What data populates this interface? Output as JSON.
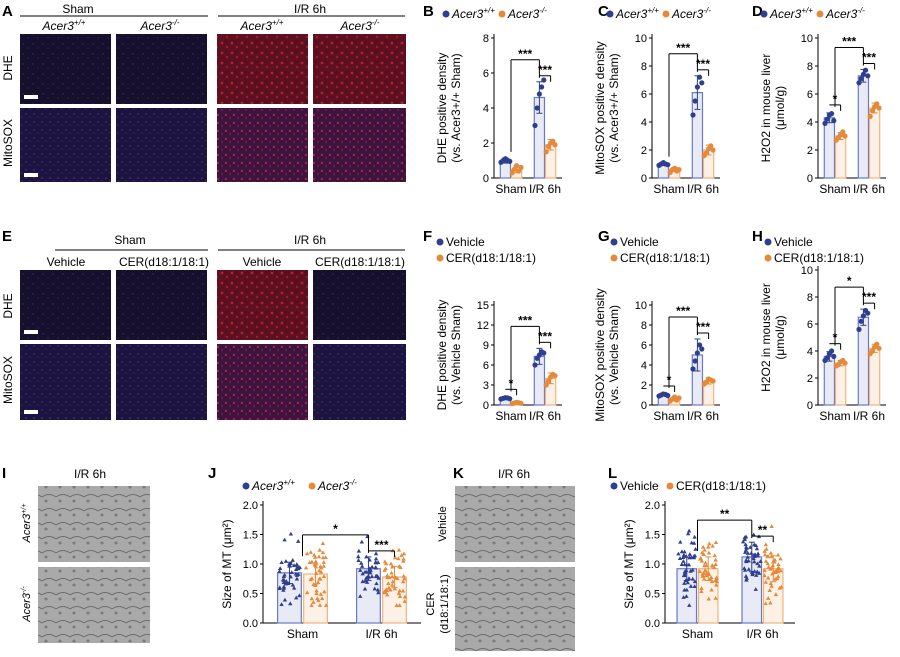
{
  "figure": {
    "panel_letters": [
      "A",
      "B",
      "C",
      "D",
      "E",
      "F",
      "G",
      "H",
      "I",
      "J",
      "K",
      "L"
    ],
    "scale_bar": "",
    "colors": {
      "wt_dark": "#2f3f8f",
      "wt_light": "#6a79c7",
      "ko_orange": "#e58a3a",
      "ko_light": "#f2b47c",
      "stain_red": "#8c1a2a",
      "stain_blue": "#1c1f5a",
      "em_gray": "#9a9a9a"
    }
  },
  "panel_A": {
    "group_sham": "Sham",
    "group_ir": "I/R 6h",
    "col_wt": "Acer3",
    "col_wt_sup": "+/+",
    "col_ko": "Acer3",
    "col_ko_sup": "-/-",
    "row_dhe": "DHE",
    "row_mitosox": "MitoSOX"
  },
  "panel_E": {
    "group_sham": "Sham",
    "group_ir": "I/R 6h",
    "col_vehicle": "Vehicle",
    "col_cer": "CER(d18:1/18:1)",
    "row_dhe": "DHE",
    "row_mitosox": "MitoSOX"
  },
  "panel_I": {
    "title": "I/R 6h",
    "row_wt": "Acer3",
    "row_wt_sup": "+/+",
    "row_ko": "Acer3",
    "row_ko_sup": "-/-"
  },
  "panel_K": {
    "title": "I/R 6h",
    "row_vehicle": "Vehicle",
    "row_cer": "CER",
    "row_cer2": "(d18:1/18:1)"
  },
  "chart_data": [
    {
      "panel": "B",
      "type": "bar",
      "categories": [
        "Sham",
        "I/R 6h"
      ],
      "series": [
        {
          "name": "Acer3+/+",
          "values": [
            1.0,
            4.6
          ],
          "error": [
            0.15,
            0.9
          ],
          "points": [
            [
              0.9,
              1.0,
              1.1,
              1.0,
              0.95
            ],
            [
              3.0,
              4.0,
              4.8,
              5.2,
              5.6
            ]
          ]
        },
        {
          "name": "Acer3-/-",
          "values": [
            0.5,
            1.9
          ],
          "error": [
            0.2,
            0.3
          ],
          "points": [
            [
              0.3,
              0.5,
              0.7,
              0.4,
              0.6
            ],
            [
              1.5,
              1.8,
              2.0,
              2.1,
              1.9
            ]
          ]
        }
      ],
      "ylabel_line1": "DHE positive density",
      "ylabel_line2": "(vs. Acer3+/+ Sham)",
      "ylim": [
        0,
        8
      ],
      "yticks": [
        0,
        2,
        4,
        6,
        8
      ],
      "significance": [
        "***",
        "***"
      ]
    },
    {
      "panel": "C",
      "type": "bar",
      "categories": [
        "Sham",
        "I/R 6h"
      ],
      "series": [
        {
          "name": "Acer3+/+",
          "values": [
            1.0,
            6.1
          ],
          "error": [
            0.1,
            1.2
          ],
          "points": [
            [
              0.9,
              1.0,
              1.1,
              1.0,
              0.95
            ],
            [
              4.5,
              5.5,
              6.5,
              7.2,
              6.8
            ]
          ]
        },
        {
          "name": "Acer3-/-",
          "values": [
            0.6,
            2.0
          ],
          "error": [
            0.15,
            0.35
          ],
          "points": [
            [
              0.4,
              0.6,
              0.7,
              0.5,
              0.6
            ],
            [
              1.6,
              1.8,
              2.1,
              2.3,
              2.0
            ]
          ]
        }
      ],
      "ylabel_line1": "MitoSOX positive density",
      "ylabel_line2": "(vs. Acer3+/+ Sham)",
      "ylim": [
        0,
        10
      ],
      "yticks": [
        0,
        2,
        4,
        6,
        8,
        10
      ],
      "significance": [
        "***",
        "***"
      ]
    },
    {
      "panel": "D",
      "type": "bar",
      "categories": [
        "Sham",
        "I/R 6h"
      ],
      "series": [
        {
          "name": "Acer3+/+",
          "values": [
            4.3,
            7.3
          ],
          "error": [
            0.35,
            0.45
          ],
          "points": [
            [
              3.9,
              4.2,
              4.5,
              4.6,
              4.1
            ],
            [
              6.8,
              7.1,
              7.4,
              7.7,
              7.3
            ]
          ]
        },
        {
          "name": "Acer3-/-",
          "values": [
            3.0,
            5.0
          ],
          "error": [
            0.25,
            0.35
          ],
          "points": [
            [
              2.7,
              2.9,
              3.1,
              3.3,
              3.0
            ],
            [
              4.4,
              4.8,
              5.1,
              5.3,
              5.0
            ]
          ]
        }
      ],
      "ylabel_line1": "H2O2 in mouse liver",
      "ylabel_line2": "(μmol/g)",
      "ylim": [
        0,
        10
      ],
      "yticks": [
        0,
        2,
        4,
        6,
        8,
        10
      ],
      "significance": [
        "*",
        "***",
        "***"
      ]
    },
    {
      "panel": "F",
      "type": "bar",
      "categories": [
        "Sham",
        "I/R 6h"
      ],
      "series": [
        {
          "name": "Vehicle",
          "values": [
            1.0,
            7.3
          ],
          "error": [
            0.15,
            1.2
          ],
          "points": [
            [
              0.9,
              1.0,
              1.1,
              1.05,
              0.95
            ],
            [
              6.0,
              7.0,
              7.5,
              8.0,
              7.8
            ]
          ]
        },
        {
          "name": "CER(d18:1/18:1)",
          "values": [
            0.3,
            4.0
          ],
          "error": [
            0.1,
            0.8
          ],
          "points": [
            [
              0.2,
              0.3,
              0.4,
              0.35,
              0.25
            ],
            [
              3.0,
              3.6,
              4.2,
              4.6,
              4.4
            ]
          ]
        }
      ],
      "ylabel_line1": "DHE positive density",
      "ylabel_line2": "(vs. Vehicle Sham)",
      "ylim": [
        0,
        15
      ],
      "yticks": [
        0,
        3,
        6,
        9,
        12,
        15
      ],
      "significance": [
        "*",
        "***",
        "***"
      ]
    },
    {
      "panel": "G",
      "type": "bar",
      "categories": [
        "Sham",
        "I/R 6h"
      ],
      "series": [
        {
          "name": "Vehicle",
          "values": [
            1.0,
            5.0
          ],
          "error": [
            0.1,
            1.6
          ],
          "points": [
            [
              0.9,
              1.0,
              1.1,
              1.05,
              0.95
            ],
            [
              3.6,
              4.4,
              5.2,
              6.0,
              5.6
            ]
          ]
        },
        {
          "name": "CER(d18:1/18:1)",
          "values": [
            0.6,
            2.4
          ],
          "error": [
            0.2,
            0.3
          ],
          "points": [
            [
              0.4,
              0.6,
              0.8,
              0.5,
              0.7
            ],
            [
              2.1,
              2.3,
              2.6,
              2.5,
              2.4
            ]
          ]
        }
      ],
      "ylabel_line1": "MitoSOX positive density",
      "ylabel_line2": "(vs. Vehicle Sham)",
      "ylim": [
        0,
        10
      ],
      "yticks": [
        0,
        2,
        4,
        6,
        8,
        10
      ],
      "significance": [
        "*",
        "***",
        "***"
      ]
    },
    {
      "panel": "H",
      "type": "bar",
      "categories": [
        "Sham",
        "I/R 6h"
      ],
      "series": [
        {
          "name": "Vehicle",
          "values": [
            3.6,
            6.5
          ],
          "error": [
            0.35,
            0.6
          ],
          "points": [
            [
              3.3,
              3.5,
              3.8,
              4.0,
              3.6
            ],
            [
              5.6,
              6.2,
              6.6,
              7.0,
              6.8
            ]
          ]
        },
        {
          "name": "CER(d18:1/18:1)",
          "values": [
            3.1,
            4.2
          ],
          "error": [
            0.2,
            0.3
          ],
          "points": [
            [
              2.9,
              3.0,
              3.2,
              3.3,
              3.1
            ],
            [
              3.8,
              4.0,
              4.3,
              4.5,
              4.2
            ]
          ]
        }
      ],
      "ylabel_line1": "H2O2 in mouse liver",
      "ylabel_line2": "(μmol/g)",
      "ylim": [
        0,
        10
      ],
      "yticks": [
        0,
        2,
        4,
        6,
        8,
        10
      ],
      "significance": [
        "*",
        "*",
        "***"
      ]
    },
    {
      "panel": "J",
      "type": "bar",
      "categories": [
        "Sham",
        "I/R 6h"
      ],
      "series": [
        {
          "name": "Acer3+/+",
          "values": [
            0.85,
            0.92
          ],
          "error": [
            0.18,
            0.2
          ]
        },
        {
          "name": "Acer3-/-",
          "values": [
            0.83,
            0.78
          ],
          "error": [
            0.17,
            0.18
          ]
        }
      ],
      "ylabel": "Size of MT (μm²)",
      "ylim": [
        0,
        2.0
      ],
      "yticks": [
        0.0,
        0.5,
        1.0,
        1.5,
        2.0
      ],
      "significance": [
        "*",
        "***"
      ]
    },
    {
      "panel": "L",
      "type": "bar",
      "categories": [
        "Sham",
        "I/R 6h"
      ],
      "series": [
        {
          "name": "Vehicle",
          "values": [
            0.92,
            1.12
          ],
          "error": [
            0.2,
            0.25
          ]
        },
        {
          "name": "CER(d18:1/18:1)",
          "values": [
            0.92,
            0.92
          ],
          "error": [
            0.2,
            0.22
          ]
        }
      ],
      "ylabel": "Size of MT (μm²)",
      "ylim": [
        0,
        2.0
      ],
      "yticks": [
        0.0,
        0.5,
        1.0,
        1.5,
        2.0
      ],
      "significance": [
        "**",
        "**"
      ]
    }
  ]
}
